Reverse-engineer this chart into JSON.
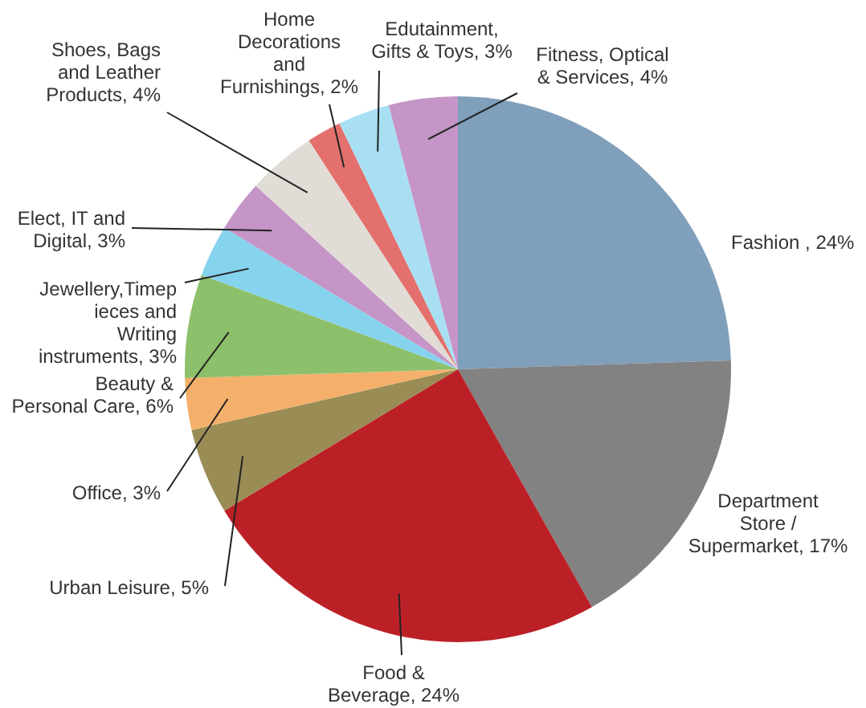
{
  "chart_data": {
    "type": "pie",
    "categories": [
      "Fashion ",
      "Department\nStore /\nSupermarket",
      "Food &\nBeverage",
      "Urban Leisure",
      "Office",
      "Beauty &\nPersonal Care",
      "Jewellery,Timep\nieces and\nWriting\ninstruments",
      "Elect, IT and\nDigital",
      "Shoes, Bags\nand Leather\nProducts",
      "Home\nDecorations\nand\nFurnishings",
      "Edutainment,\nGifts & Toys",
      "Fitness, Optical\n& Services"
    ],
    "values": [
      24,
      17,
      24,
      5,
      3,
      6,
      3,
      3,
      4,
      2,
      3,
      4
    ],
    "value_labels": [
      "24%",
      "17%",
      "24%",
      "5%",
      "3%",
      "6%",
      "3%",
      "3%",
      "4%",
      "2%",
      "3%",
      "4%"
    ],
    "colors": [
      "#7f9fbb",
      "#828282",
      "#bc2027",
      "#9a8c55",
      "#f4b06a",
      "#8dc06a",
      "#86d3ee",
      "#c495c6",
      "#e2dcd6",
      "#e3706c",
      "#a9dff3",
      "#c495c6"
    ],
    "legend": false
  }
}
